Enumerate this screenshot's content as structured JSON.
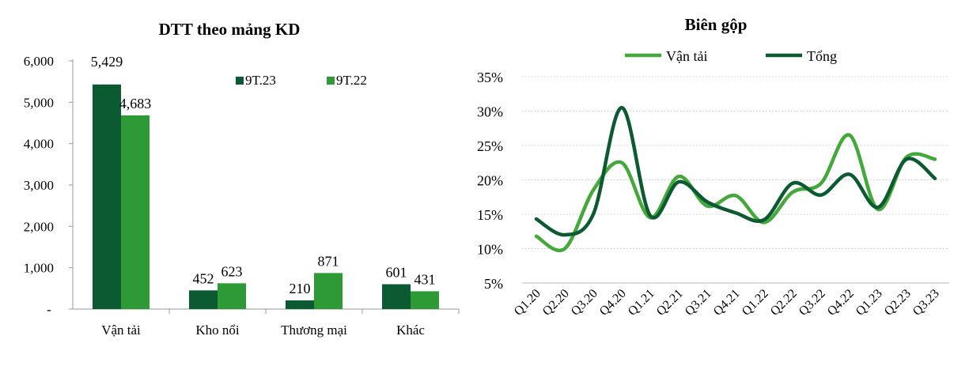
{
  "chart_data": [
    {
      "type": "bar",
      "title": "DTT  theo mảng KD",
      "categories": [
        "Vận tải",
        "Kho nổi",
        "Thương mại",
        "Khác"
      ],
      "series": [
        {
          "name": "9T.23",
          "values": [
            5429,
            452,
            210,
            601
          ],
          "labels": [
            "5,429",
            "452",
            "210",
            "601"
          ],
          "color": "#0b5a31"
        },
        {
          "name": "9T.22",
          "values": [
            4683,
            623,
            871,
            431
          ],
          "labels": [
            "4,683",
            "623",
            "871",
            "431"
          ],
          "color": "#2e9a35"
        }
      ],
      "yticks": [
        "-",
        "1,000",
        "2,000",
        "3,000",
        "4,000",
        "5,000",
        "6,000"
      ],
      "ylim": [
        0,
        6000
      ],
      "legend": "top-right",
      "grid": false
    },
    {
      "type": "line",
      "title": "Biên gộp",
      "categories": [
        "Q1.20",
        "Q2.20",
        "Q3.20",
        "Q4.20",
        "Q1.21",
        "Q2.21",
        "Q3.21",
        "Q4.21",
        "Q1.22",
        "Q2.22",
        "Q3.22",
        "Q4.22",
        "Q1.23",
        "Q2.23",
        "Q3.23"
      ],
      "series": [
        {
          "name": "Vận tải",
          "values": [
            11.8,
            10.0,
            18.5,
            22.5,
            14.5,
            20.5,
            16.2,
            17.7,
            13.8,
            18.2,
            19.5,
            26.5,
            15.7,
            23.3,
            23.0
          ],
          "color": "#45a83a"
        },
        {
          "name": "Tổng",
          "values": [
            14.3,
            12.0,
            15.0,
            30.5,
            14.8,
            19.7,
            16.8,
            15.2,
            14.2,
            19.5,
            17.8,
            20.8,
            16.0,
            23.0,
            20.2
          ],
          "color": "#0b5a31"
        }
      ],
      "yticks": [
        "5%",
        "10%",
        "15%",
        "20%",
        "25%",
        "30%",
        "35%"
      ],
      "ylim": [
        5,
        35
      ],
      "legend": "top",
      "grid": true
    }
  ]
}
